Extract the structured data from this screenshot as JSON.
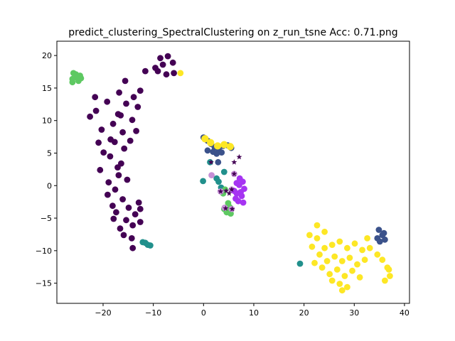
{
  "chart_data": {
    "type": "scatter",
    "title": "predict_clustering_SpectralClustering on z_run_tsne  Acc: 0.71.png",
    "xlabel": "",
    "ylabel": "",
    "xlim": [
      -29.2,
      41.0
    ],
    "ylim": [
      -18.1,
      22.2
    ],
    "xticks": [
      -20,
      -10,
      0,
      10,
      20,
      30,
      40
    ],
    "yticks": [
      -15,
      -10,
      -5,
      0,
      5,
      10,
      15,
      20
    ],
    "xtick_labels": [
      "−20",
      "−10",
      "0",
      "10",
      "20",
      "30",
      "40"
    ],
    "ytick_labels": [
      "−15",
      "−10",
      "−5",
      "0",
      "5",
      "10",
      "15",
      "20"
    ],
    "grid": false,
    "legend": "none",
    "series": [
      {
        "color": "#440154",
        "points": [
          [
            -17,
            11
          ],
          [
            -16.5,
            10.8
          ],
          [
            -18,
            9.5
          ],
          [
            -15.4,
            12.6
          ],
          [
            -19.2,
            12.9
          ],
          [
            -14.2,
            10.1
          ],
          [
            -17.7,
            6.7
          ],
          [
            -16.1,
            8.2
          ],
          [
            -20.3,
            8.6
          ],
          [
            -13.1,
            12.1
          ],
          [
            -16.8,
            14.3
          ],
          [
            -21.4,
            11.5
          ],
          [
            -18.6,
            4.5
          ],
          [
            -15.8,
            5.7
          ],
          [
            -19.9,
            5.1
          ],
          [
            -17.1,
            2.8
          ],
          [
            -14.6,
            6.9
          ],
          [
            -20.6,
            2.4
          ],
          [
            -16.4,
            3.4
          ],
          [
            -18.9,
            0.5
          ],
          [
            -15.2,
            0.9
          ],
          [
            -17.6,
            -0.6
          ],
          [
            -16.1,
            -2.1
          ],
          [
            -19.1,
            -1.4
          ],
          [
            -14.9,
            -3.4
          ],
          [
            -17.4,
            -4.1
          ],
          [
            -15.4,
            -5.3
          ],
          [
            -13.6,
            -4.4
          ],
          [
            -16.6,
            -6.6
          ],
          [
            -14.1,
            -6.1
          ],
          [
            -12.6,
            -5.6
          ],
          [
            -15.9,
            -7.6
          ],
          [
            -14.3,
            -8.1
          ],
          [
            -14.1,
            -9.6
          ],
          [
            -18.1,
            -3.1
          ],
          [
            -12.9,
            -2.6
          ],
          [
            -21.6,
            13.6
          ],
          [
            -22.6,
            10.6
          ],
          [
            -20.9,
            6.6
          ],
          [
            -13.9,
            13.6
          ],
          [
            -12.6,
            14.6
          ],
          [
            -15.6,
            16.1
          ],
          [
            -11.6,
            17.6
          ],
          [
            -13.4,
            8.4
          ],
          [
            -18.5,
            7.1
          ],
          [
            -16.9,
            1.6
          ],
          [
            -12.6,
            -3.6
          ],
          [
            -17.9,
            -5.1
          ],
          [
            -9.1,
            17.6
          ],
          [
            -8.1,
            18.6
          ],
          [
            -7.4,
            17.1
          ],
          [
            -6.1,
            18.9
          ],
          [
            -8.6,
            19.6
          ],
          [
            -7.1,
            19.9
          ],
          [
            -9.6,
            18.1
          ],
          [
            -5.9,
            17.3
          ]
        ]
      },
      {
        "color": "#3b528b",
        "points": [
          [
            0,
            7.4
          ],
          [
            0.8,
            6.9
          ],
          [
            1.5,
            6.4
          ],
          [
            2.2,
            5.9
          ],
          [
            3,
            5.6
          ],
          [
            3.9,
            6.1
          ],
          [
            4.8,
            6.2
          ],
          [
            5.5,
            5.8
          ],
          [
            2.6,
            4.9
          ],
          [
            1.9,
            5.2
          ],
          [
            0.8,
            5.4
          ],
          [
            3.6,
            5.1
          ],
          [
            2.9,
            3.6
          ],
          [
            34.9,
            -6.8
          ],
          [
            35.6,
            -7.6
          ],
          [
            36.1,
            -8.3
          ],
          [
            35.1,
            -8.6
          ],
          [
            34.6,
            -8.1
          ],
          [
            35.9,
            -7.3
          ]
        ]
      },
      {
        "color": "#21908c",
        "points": [
          [
            -11.6,
            -8.8
          ],
          [
            -11.1,
            -9.1
          ],
          [
            -10.6,
            -9.2
          ],
          [
            -12.1,
            -8.7
          ],
          [
            1.3,
            3.6
          ],
          [
            2.6,
            1.1
          ],
          [
            3,
            0.6
          ],
          [
            4.1,
            2.1
          ],
          [
            3.5,
            -0.3
          ],
          [
            -0.1,
            0.7
          ],
          [
            19.2,
            -12.0
          ]
        ]
      },
      {
        "color": "#5ec962",
        "points": [
          [
            -26.1,
            16.4
          ],
          [
            -25.4,
            17.1
          ],
          [
            -24.6,
            16.9
          ],
          [
            -25.9,
            17.3
          ],
          [
            -24.9,
            16.1
          ],
          [
            -26.1,
            15.9
          ],
          [
            -25.2,
            16.6
          ],
          [
            -24.4,
            16.5
          ],
          [
            4.1,
            -3.6
          ],
          [
            4.6,
            -4.1
          ],
          [
            5.2,
            -3.3
          ],
          [
            5.4,
            -4.3
          ],
          [
            4.9,
            -2.7
          ],
          [
            3.9,
            -1.2
          ],
          [
            4.3,
            -0.6
          ]
        ]
      },
      {
        "color": "#c58fd6",
        "points": [
          [
            1.6,
            1.6
          ],
          [
            4.2,
            -3.4
          ],
          [
            5.6,
            -3.6
          ],
          [
            3.4,
            -0.9
          ],
          [
            5.6,
            -0.6
          ],
          [
            6.1,
            1.8
          ]
        ]
      },
      {
        "color": "#a634f2",
        "points": [
          [
            6.1,
            -0.8
          ],
          [
            6.6,
            0.4
          ],
          [
            7.2,
            1.1
          ],
          [
            7.8,
            0.6
          ],
          [
            8.1,
            -0.5
          ],
          [
            7.6,
            -1.6
          ],
          [
            6.9,
            -2.4
          ],
          [
            6.6,
            -1.2
          ],
          [
            7.1,
            0.1
          ],
          [
            6.4,
            -2.0
          ],
          [
            7.9,
            -2.6
          ],
          [
            7.4,
            -1.0
          ]
        ]
      },
      {
        "color": "#fde725",
        "points": [
          [
            -4.6,
            17.3
          ],
          [
            22.6,
            -8.1
          ],
          [
            24.1,
            -7.1
          ],
          [
            25.6,
            -9.1
          ],
          [
            27.1,
            -8.6
          ],
          [
            28.6,
            -9.6
          ],
          [
            30.1,
            -8.9
          ],
          [
            31.6,
            -9.9
          ],
          [
            23.1,
            -10.6
          ],
          [
            24.6,
            -11.6
          ],
          [
            26.1,
            -10.9
          ],
          [
            27.6,
            -11.6
          ],
          [
            29.1,
            -11.1
          ],
          [
            30.6,
            -12.1
          ],
          [
            32.1,
            -11.4
          ],
          [
            23.6,
            -12.6
          ],
          [
            25.1,
            -13.6
          ],
          [
            26.6,
            -12.9
          ],
          [
            28.1,
            -13.9
          ],
          [
            29.6,
            -13.1
          ],
          [
            31.1,
            -14.1
          ],
          [
            25.6,
            -14.6
          ],
          [
            27.1,
            -15.1
          ],
          [
            28.6,
            -15.6
          ],
          [
            24.1,
            -9.6
          ],
          [
            21.6,
            -9.4
          ],
          [
            22.1,
            -11.9
          ],
          [
            33.1,
            -9.6
          ],
          [
            32.6,
            -8.1
          ],
          [
            21.1,
            -7.6
          ],
          [
            36.6,
            -12.6
          ],
          [
            37.1,
            -13.9
          ],
          [
            36.1,
            -14.6
          ],
          [
            35.6,
            -11.4
          ],
          [
            36.9,
            -12.9
          ],
          [
            34.6,
            -10.6
          ],
          [
            22.6,
            -6.1
          ],
          [
            27.6,
            -16.1
          ]
        ]
      },
      {
        "color": "#fde725",
        "ring": "#fde725",
        "points": [
          [
            0.3,
            7.2
          ],
          [
            1.4,
            6.6
          ],
          [
            2.8,
            6.1
          ],
          [
            4.1,
            6.3
          ],
          [
            5.3,
            6.0
          ]
        ]
      }
    ],
    "star_markers": {
      "color": "#440154",
      "points": [
        [
          7.1,
          4.4
        ],
        [
          6.1,
          3.6
        ],
        [
          6.1,
          1.8
        ],
        [
          1.5,
          3.6
        ],
        [
          5.6,
          -0.6
        ],
        [
          4.4,
          -3.5
        ],
        [
          5.7,
          -3.6
        ],
        [
          4.5,
          -0.8
        ],
        [
          3.4,
          -0.9
        ],
        [
          5.1,
          -1.2
        ]
      ]
    }
  }
}
